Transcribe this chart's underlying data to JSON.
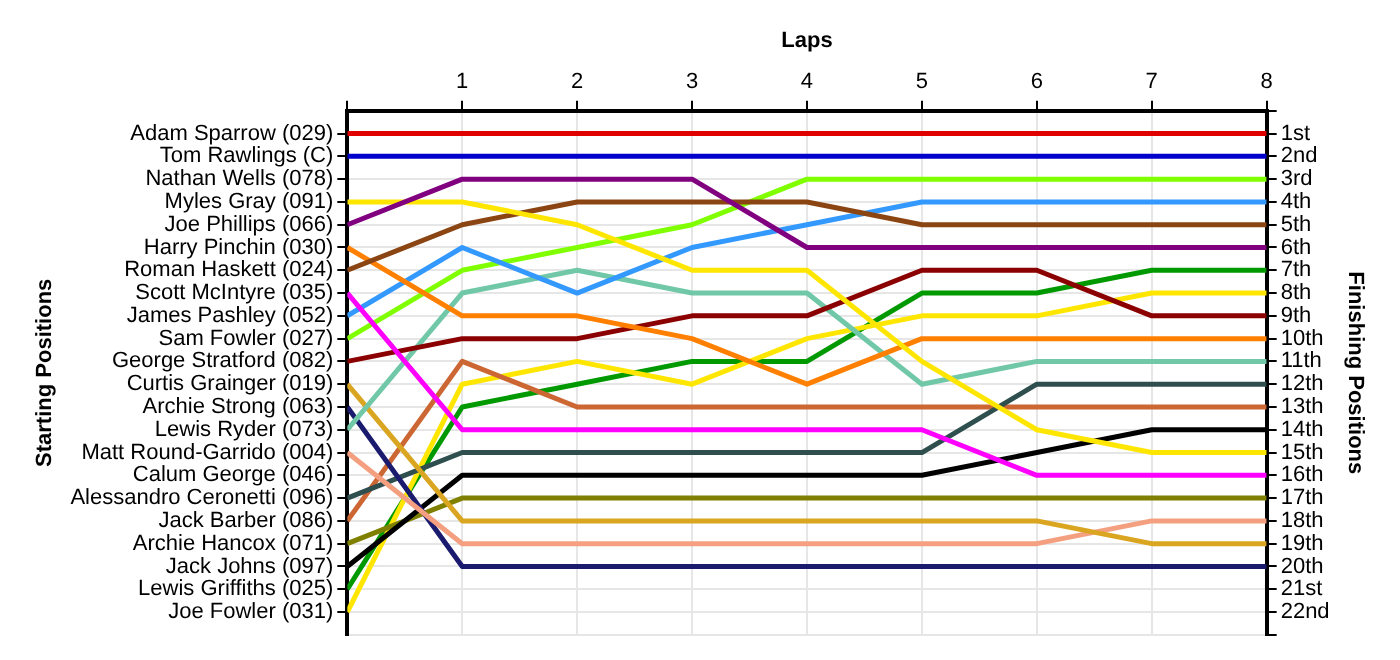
{
  "chart_data": {
    "type": "line",
    "xlabel": "Laps",
    "ylabel": "Finishing Positions",
    "annotations": [
      "Starting Positions"
    ],
    "x": [
      0,
      1,
      2,
      3,
      4,
      5,
      6,
      7,
      8
    ],
    "xlim": [
      0,
      8
    ],
    "xticks": [
      {
        "value": 0,
        "label": null
      },
      1,
      2,
      3,
      4,
      5,
      6,
      7,
      8
    ],
    "y_categories": [
      "Adam Sparrow (029)",
      "Tom Rawlings (C)",
      "Nathan Wells (078)",
      "Myles Gray (091)",
      "Joe Phillips (066)",
      "Harry Pinchin (030)",
      "Roman Haskett (024)",
      "Scott McIntyre (035)",
      "James Pashley (052)",
      "Sam Fowler (027)",
      "George Stratford (082)",
      "Curtis Grainger (019)",
      "Archie Strong (063)",
      "Lewis Ryder (073)",
      "Matt Round-Garrido (004)",
      "Calum George (046)",
      "Alessandro Ceronetti (096)",
      "Jack Barber (086)",
      "Archie Hancox (071)",
      "Jack Johns (097)",
      "Lewis Griffiths (025)",
      "Joe Fowler (031)"
    ],
    "ylim": [
      23,
      0
    ],
    "yticks": [
      {
        "value": 0,
        "label": null
      },
      {
        "value": 1,
        "label": "1st"
      },
      {
        "value": 2,
        "label": "2nd"
      },
      {
        "value": 3,
        "label": "3rd"
      },
      {
        "value": 4,
        "label": "4th"
      },
      {
        "value": 5,
        "label": "5th"
      },
      {
        "value": 6,
        "label": "6th"
      },
      {
        "value": 7,
        "label": "7th"
      },
      {
        "value": 8,
        "label": "8th"
      },
      {
        "value": 9,
        "label": "9th"
      },
      {
        "value": 10,
        "label": "10th"
      },
      {
        "value": 11,
        "label": "11th"
      },
      {
        "value": 12,
        "label": "12th"
      },
      {
        "value": 13,
        "label": "13th"
      },
      {
        "value": 14,
        "label": "14th"
      },
      {
        "value": 15,
        "label": "15th"
      },
      {
        "value": 16,
        "label": "16th"
      },
      {
        "value": 17,
        "label": "17th"
      },
      {
        "value": 18,
        "label": "18th"
      },
      {
        "value": 19,
        "label": "19th"
      },
      {
        "value": 20,
        "label": "20th"
      },
      {
        "value": 21,
        "label": "21st"
      },
      {
        "value": 22,
        "label": "22nd"
      },
      {
        "value": 23,
        "label": null
      }
    ],
    "series": [
      {
        "color": "#e00000",
        "values": [
          1,
          1,
          1,
          1,
          1,
          1,
          1,
          1,
          1
        ]
      },
      {
        "color": "#0000cc",
        "values": [
          2,
          2,
          2,
          2,
          2,
          2,
          2,
          2,
          2
        ]
      },
      {
        "color": "#800080",
        "values": [
          5,
          3,
          3,
          3,
          6,
          6,
          6,
          6,
          6
        ]
      },
      {
        "color": "#ffe600",
        "values": [
          4,
          4,
          5,
          7,
          7,
          11,
          14,
          15,
          15
        ]
      },
      {
        "color": "#8b4513",
        "values": [
          7,
          5,
          4,
          4,
          4,
          5,
          5,
          5,
          5
        ]
      },
      {
        "color": "#ff8000",
        "values": [
          6,
          9,
          9,
          10,
          12,
          10,
          10,
          10,
          10
        ]
      },
      {
        "color": "#ff00ff",
        "values": [
          8,
          14,
          14,
          14,
          14,
          14,
          16,
          16,
          16
        ]
      },
      {
        "color": "#3399ff",
        "values": [
          9,
          6,
          8,
          6,
          5,
          4,
          4,
          4,
          4
        ]
      },
      {
        "color": "#80ff00",
        "values": [
          10,
          7,
          6,
          5,
          3,
          3,
          3,
          3,
          3
        ]
      },
      {
        "color": "#8b0000",
        "values": [
          11,
          10,
          10,
          9,
          9,
          7,
          7,
          9,
          9
        ]
      },
      {
        "color": "#70c8a8",
        "values": [
          14,
          8,
          7,
          8,
          8,
          12,
          11,
          11,
          11
        ]
      },
      {
        "color": "#daa520",
        "values": [
          12,
          18,
          18,
          18,
          18,
          18,
          18,
          19,
          19
        ]
      },
      {
        "color": "#f4a080",
        "values": [
          15,
          19,
          19,
          19,
          19,
          19,
          19,
          18,
          18
        ]
      },
      {
        "color": "#1a1a6e",
        "values": [
          13,
          20,
          20,
          20,
          20,
          20,
          20,
          20,
          20
        ]
      },
      {
        "color": "#2f4f4f",
        "values": [
          17,
          15,
          15,
          15,
          15,
          15,
          12,
          12,
          12
        ]
      },
      {
        "color": "#000000",
        "values": [
          20,
          16,
          16,
          16,
          16,
          16,
          15,
          14,
          14
        ]
      },
      {
        "color": "#808000",
        "values": [
          19,
          17,
          17,
          17,
          17,
          17,
          17,
          17,
          17
        ]
      },
      {
        "color": "#cc6633",
        "values": [
          18,
          11,
          13,
          13,
          13,
          13,
          13,
          13,
          13
        ]
      },
      {
        "color": "#ffe600",
        "values": [
          22,
          12,
          11,
          12,
          10,
          9,
          9,
          8,
          8
        ]
      },
      {
        "color": "#009900",
        "values": [
          21,
          13,
          12,
          11,
          11,
          8,
          8,
          7,
          7
        ]
      }
    ],
    "grid": true,
    "legend": false,
    "marker": "none",
    "line_style": "solid"
  }
}
